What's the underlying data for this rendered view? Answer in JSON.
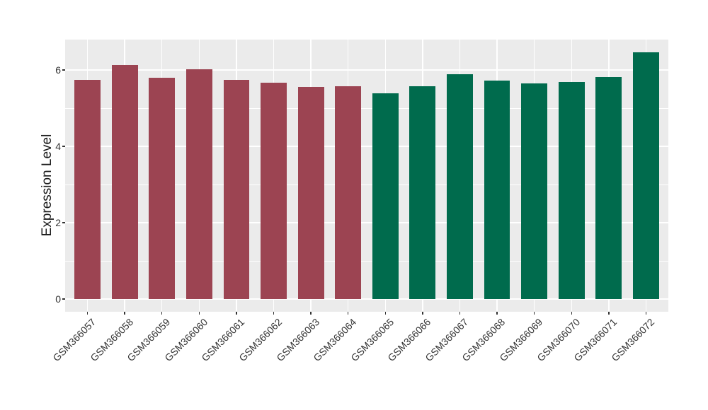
{
  "chart_data": {
    "type": "bar",
    "title": "",
    "xlabel": "",
    "ylabel": "Expression Level",
    "categories": [
      "GSM366057",
      "GSM366058",
      "GSM366059",
      "GSM366060",
      "GSM366061",
      "GSM366062",
      "GSM366063",
      "GSM366064",
      "GSM366065",
      "GSM366066",
      "GSM366067",
      "GSM366068",
      "GSM366069",
      "GSM366070",
      "GSM366071",
      "GSM366072"
    ],
    "values": [
      5.74,
      6.13,
      5.8,
      6.02,
      5.74,
      5.67,
      5.56,
      5.57,
      5.39,
      5.58,
      5.89,
      5.72,
      5.64,
      5.69,
      5.81,
      6.47
    ],
    "bar_colors": [
      "#9C4452",
      "#9C4452",
      "#9C4452",
      "#9C4452",
      "#9C4452",
      "#9C4452",
      "#9C4452",
      "#9C4452",
      "#006B4D",
      "#006B4D",
      "#006B4D",
      "#006B4D",
      "#006B4D",
      "#006B4D",
      "#006B4D",
      "#006B4D"
    ],
    "ylim": [
      0,
      6.8
    ],
    "yticks": [
      0,
      2,
      4,
      6
    ],
    "ytick_labels": [
      "0",
      "2",
      "4",
      "6"
    ],
    "yticks_minor": [
      1,
      3,
      5
    ],
    "grid": "horizontal major+minor and per-category vertical, white on grey panel",
    "legend_position": "none",
    "styles": {
      "panel_bg": "#EBEBEB",
      "grid_color": "#FFFFFF",
      "axis_text_color": "#333333",
      "axis_title_color": "#1A1A1A",
      "tick_mark_color": "#333333",
      "group1_color": "#9C4452",
      "group2_color": "#006B4D"
    }
  }
}
